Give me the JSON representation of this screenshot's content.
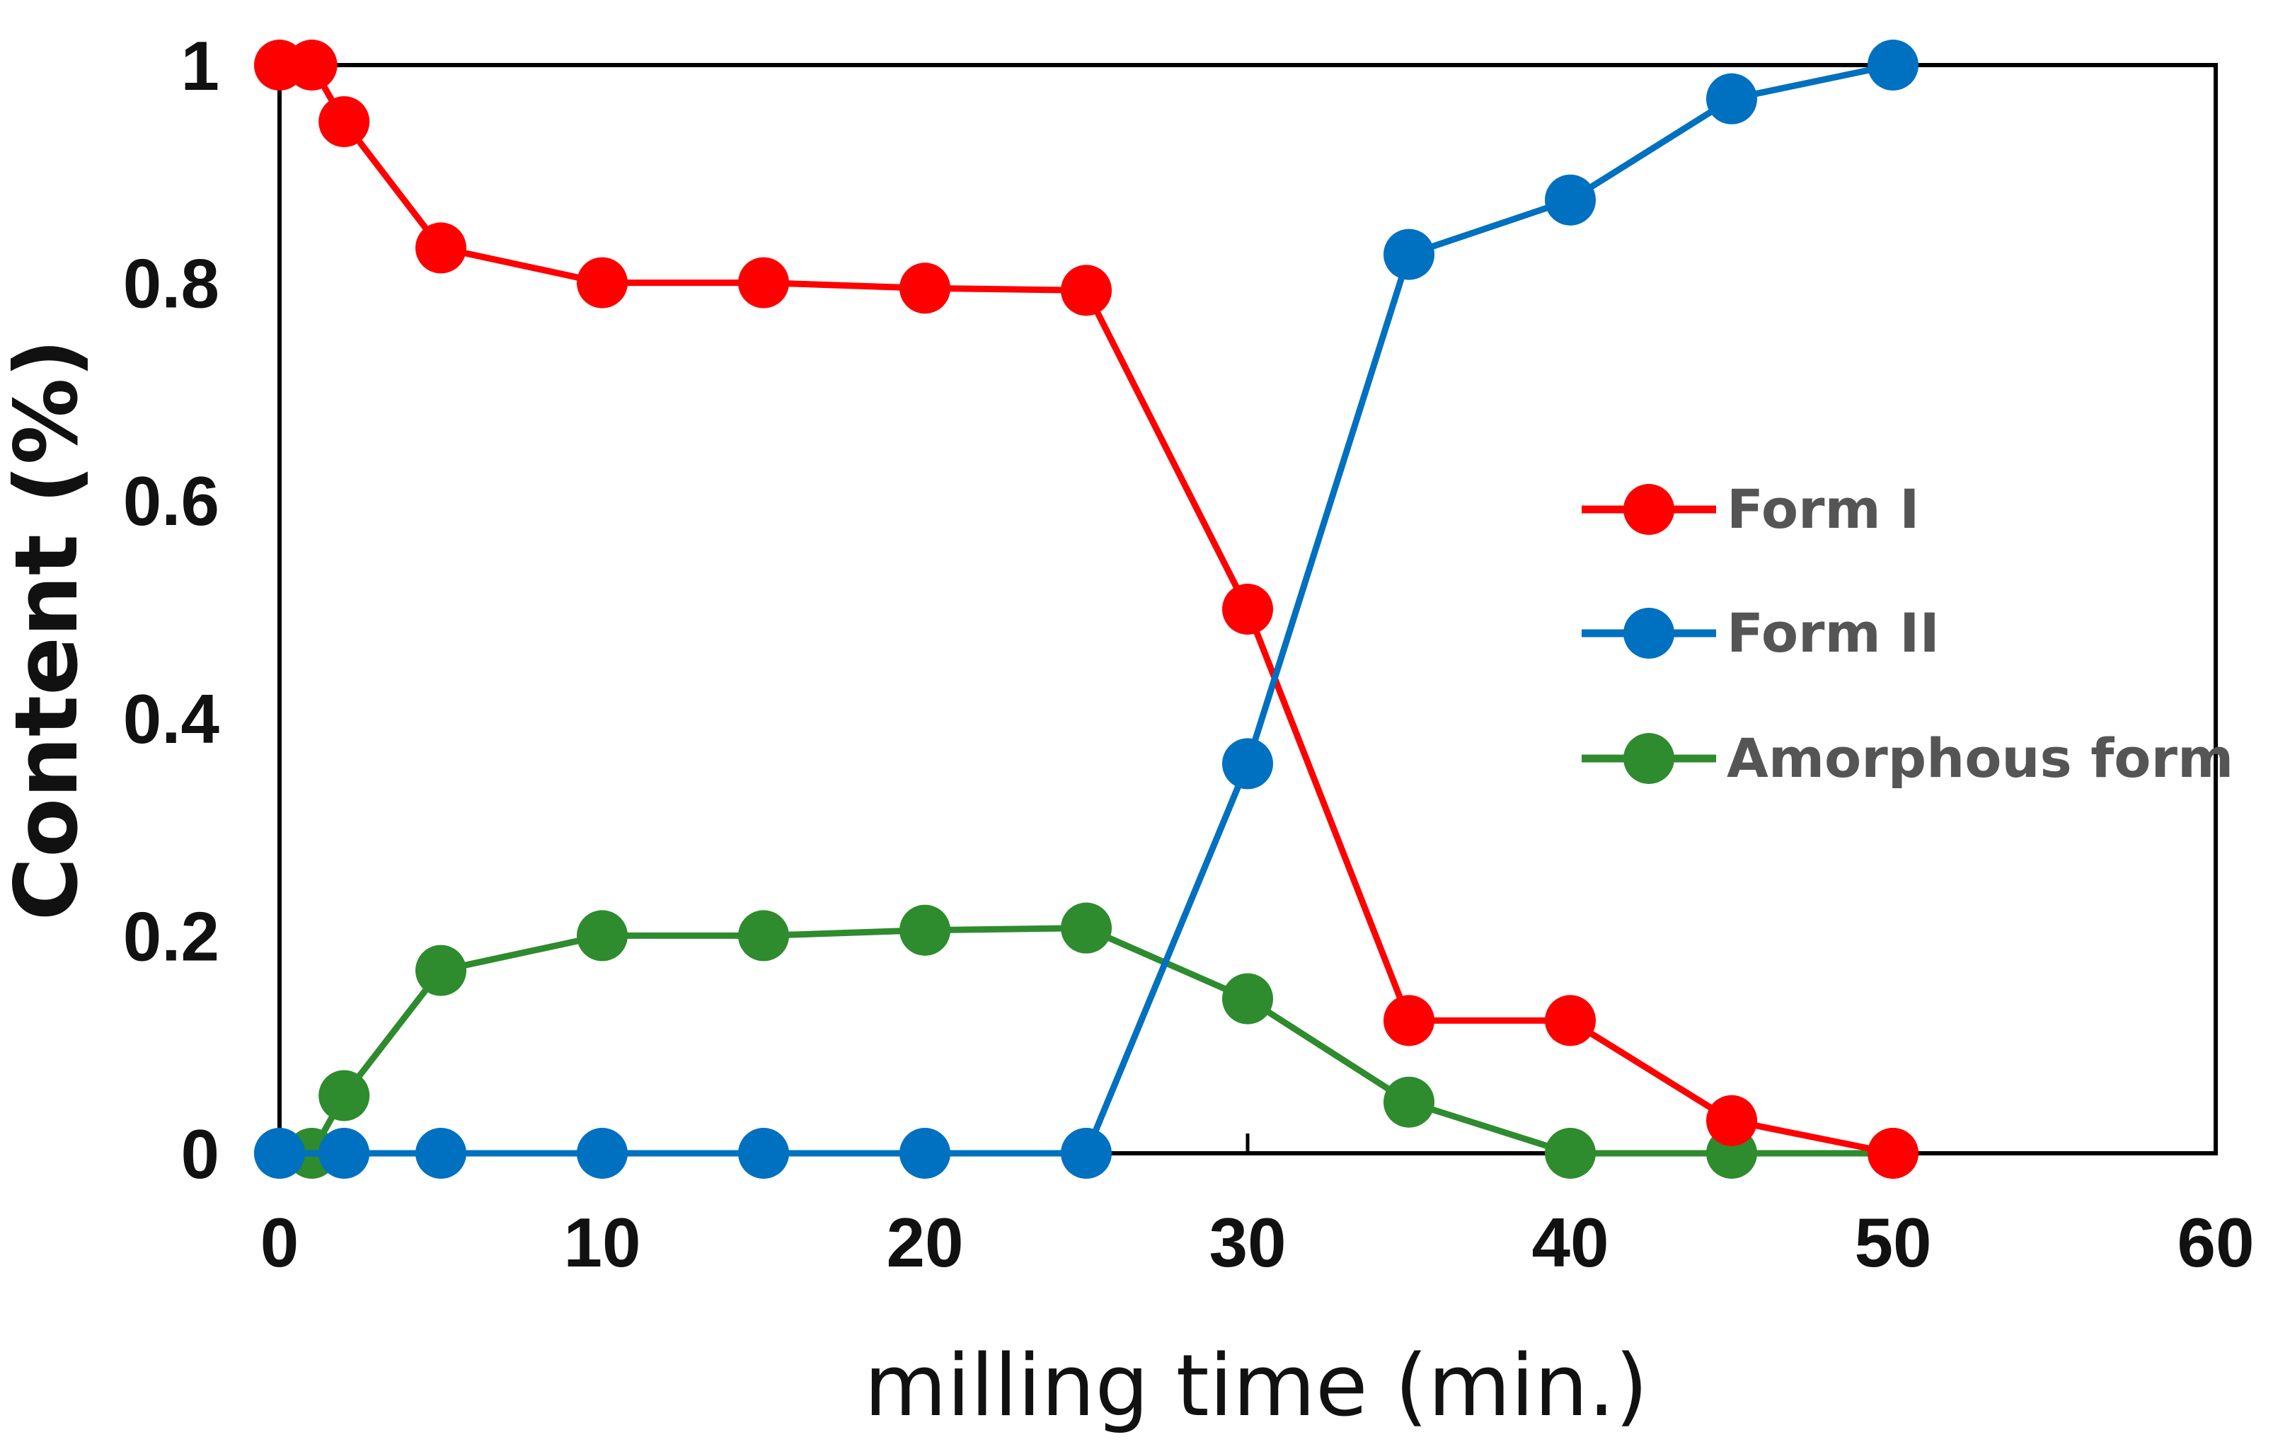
{
  "chart_data": {
    "type": "line",
    "title": "",
    "xlabel": "milling time (min.)",
    "ylabel": "Content (%)",
    "xlim": [
      0,
      60
    ],
    "ylim": [
      0,
      1
    ],
    "x_ticks": [
      "0",
      "10",
      "20",
      "30",
      "40",
      "50",
      "60"
    ],
    "y_ticks": [
      "0",
      "0.2",
      "0.4",
      "0.6",
      "0.8",
      "1"
    ],
    "grid": false,
    "legend_position": "center-right",
    "series": [
      {
        "name": "Form I",
        "color": "#ff0000",
        "x": [
          0,
          1,
          2,
          5,
          10,
          15,
          20,
          25,
          30,
          35,
          40,
          45,
          50
        ],
        "y": [
          1.0,
          1.0,
          0.948,
          0.832,
          0.8,
          0.8,
          0.795,
          0.793,
          0.5,
          0.122,
          0.122,
          0.03,
          0.0
        ]
      },
      {
        "name": "Form II",
        "color": "#0070c0",
        "x": [
          0,
          2,
          5,
          10,
          15,
          20,
          25,
          30,
          35,
          40,
          45,
          50
        ],
        "y": [
          0.0,
          0.0,
          0.0,
          0.0,
          0.0,
          0.0,
          0.0,
          0.358,
          0.826,
          0.876,
          0.969,
          1.0
        ]
      },
      {
        "name": "Amorphous form",
        "color": "#2e8b2e",
        "x": [
          0,
          1,
          2,
          5,
          10,
          15,
          20,
          25,
          30,
          35,
          40,
          45,
          50
        ],
        "y": [
          0.0,
          0.0,
          0.053,
          0.168,
          0.2,
          0.2,
          0.205,
          0.207,
          0.142,
          0.047,
          0.0,
          0.0,
          0.0
        ]
      }
    ]
  }
}
